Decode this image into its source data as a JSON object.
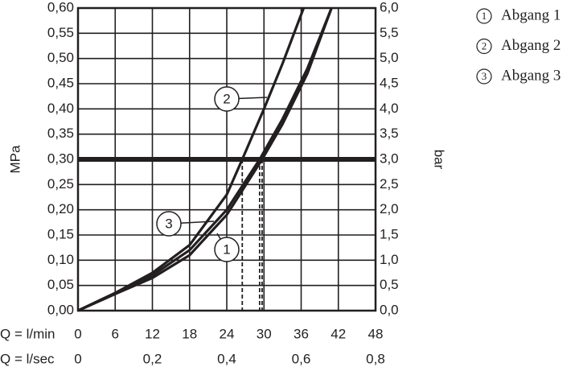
{
  "chart_data": {
    "type": "line",
    "y_label": "MPa",
    "y2_label": "bar",
    "x_label": "Q = l/min",
    "x2_label": "Q = l/sec",
    "xlim": [
      0,
      48
    ],
    "xticks": [
      0,
      6,
      12,
      18,
      24,
      30,
      36,
      42,
      48
    ],
    "x2lim": [
      0,
      0.8
    ],
    "x2ticks": [
      0,
      {
        "value": 0.2,
        "label": "0,2"
      },
      {
        "value": 0.4,
        "label": "0,4"
      },
      {
        "value": 0.6,
        "label": "0,6"
      },
      {
        "value": 0.8,
        "label": "0,8"
      }
    ],
    "ylim": [
      0,
      0.6
    ],
    "yticks": [
      {
        "value": 0,
        "label": "0,00"
      },
      {
        "value": 0.05,
        "label": "0,05"
      },
      {
        "value": 0.1,
        "label": "0,10"
      },
      {
        "value": 0.15,
        "label": "0,15"
      },
      {
        "value": 0.2,
        "label": "0,20"
      },
      {
        "value": 0.25,
        "label": "0,25"
      },
      {
        "value": 0.3,
        "label": "0,30"
      },
      {
        "value": 0.35,
        "label": "0,35"
      },
      {
        "value": 0.4,
        "label": "0,40"
      },
      {
        "value": 0.45,
        "label": "0,45"
      },
      {
        "value": 0.5,
        "label": "0,50"
      },
      {
        "value": 0.55,
        "label": "0,55"
      },
      {
        "value": 0.6,
        "label": "0,60"
      }
    ],
    "y2lim": [
      0,
      6
    ],
    "y2ticks": [
      {
        "value": 0,
        "label": "0,0"
      },
      {
        "value": 0.5,
        "label": "0,5"
      },
      {
        "value": 1,
        "label": "1,0"
      },
      {
        "value": 1.5,
        "label": "1,5"
      },
      {
        "value": 2,
        "label": "2,0"
      },
      {
        "value": 2.5,
        "label": "2,5"
      },
      {
        "value": 3,
        "label": "3,0"
      },
      {
        "value": 3.5,
        "label": "3,5"
      },
      {
        "value": 4,
        "label": "4,0"
      },
      {
        "value": 4.5,
        "label": "4,5"
      },
      {
        "value": 5,
        "label": "5,0"
      },
      {
        "value": 5.5,
        "label": "5,5"
      },
      {
        "value": 6,
        "label": "6,0"
      }
    ],
    "grid": true,
    "color": "#231f20",
    "reference_line": 0.3,
    "series": [
      {
        "name": "Abgang 1",
        "marker": "1",
        "x": [
          0,
          6,
          12,
          18,
          24,
          29.7,
          33,
          37,
          40.9
        ],
        "values": [
          0,
          0.033,
          0.065,
          0.11,
          0.19,
          0.3,
          0.37,
          0.47,
          0.6
        ]
      },
      {
        "name": "Abgang 2",
        "marker": "2",
        "x": [
          0,
          6,
          12,
          18,
          24,
          26.5,
          30,
          33,
          36.4
        ],
        "values": [
          0,
          0.035,
          0.075,
          0.13,
          0.23,
          0.3,
          0.4,
          0.49,
          0.6
        ]
      },
      {
        "name": "Abgang 3",
        "marker": "3",
        "x": [
          0,
          6,
          12,
          18,
          24,
          29.3,
          33,
          37,
          40.9
        ],
        "values": [
          0,
          0.035,
          0.07,
          0.12,
          0.2,
          0.3,
          0.38,
          0.48,
          0.6
        ]
      }
    ]
  }
}
